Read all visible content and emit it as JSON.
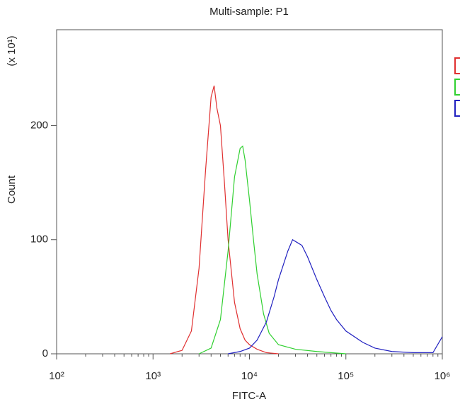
{
  "chart_data": {
    "type": "line",
    "title": "Multi-sample: P1",
    "x_label": "FITC-A",
    "y_label": "Count",
    "y_multiplier": "(x 10¹)",
    "log_x": true,
    "xlim": [
      100,
      1000000
    ],
    "xticks": [
      {
        "value": 100,
        "label": "10²"
      },
      {
        "value": 1000,
        "label": "10³"
      },
      {
        "value": 10000,
        "label": "10⁴"
      },
      {
        "value": 100000,
        "label": "10⁵"
      },
      {
        "value": 1000000,
        "label": "10⁶"
      }
    ],
    "ylim": [
      0,
      284
    ],
    "yticks": [
      0,
      100,
      200
    ],
    "series": [
      {
        "color": "#e03030",
        "x": [
          1500,
          2000,
          2500,
          3000,
          3500,
          4000,
          4300,
          4600,
          5000,
          5500,
          6000,
          7000,
          8000,
          9000,
          10000,
          12000,
          15000,
          20000
        ],
        "values": [
          0,
          3,
          20,
          75,
          160,
          225,
          235,
          215,
          200,
          150,
          100,
          45,
          22,
          12,
          8,
          4,
          1,
          0
        ]
      },
      {
        "color": "#30d030",
        "x": [
          3000,
          4000,
          5000,
          6000,
          7000,
          8000,
          8500,
          9000,
          10000,
          11000,
          12000,
          14000,
          16000,
          20000,
          30000,
          50000,
          100000
        ],
        "values": [
          0,
          5,
          30,
          90,
          155,
          180,
          182,
          170,
          135,
          100,
          70,
          35,
          18,
          8,
          4,
          2,
          0
        ]
      },
      {
        "color": "#2020c0",
        "x": [
          6000,
          8000,
          10000,
          12000,
          15000,
          18000,
          20000,
          25000,
          28000,
          32000,
          35000,
          40000,
          50000,
          60000,
          70000,
          80000,
          100000,
          150000,
          200000,
          300000,
          500000,
          800000,
          1000000
        ],
        "values": [
          0,
          2,
          5,
          12,
          28,
          50,
          65,
          90,
          100,
          97,
          95,
          85,
          65,
          50,
          38,
          30,
          20,
          10,
          5,
          2,
          1,
          1,
          15
        ]
      }
    ]
  }
}
